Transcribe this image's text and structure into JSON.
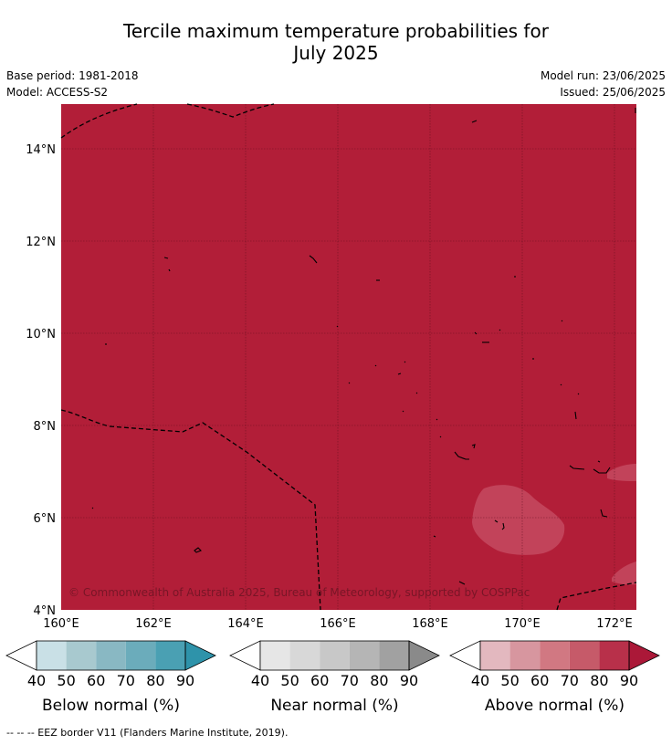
{
  "title_line1": "Tercile maximum temperature probabilities for",
  "title_line2": "July 2025",
  "meta_left": [
    "Base period: 1981-2018",
    "Model: ACCESS-S2"
  ],
  "meta_right": [
    "Model run: 23/06/2025",
    "Issued: 25/06/2025"
  ],
  "map": {
    "lat_ticks": [
      "14°N",
      "12°N",
      "10°N",
      "8°N",
      "6°N",
      "4°N"
    ],
    "lon_ticks": [
      "160°E",
      "162°E",
      "164°E",
      "166°E",
      "168°E",
      "170°E",
      "172°E"
    ],
    "fill_color": "#b21e38",
    "lighter_color": "#c2435a",
    "copyright": "© Commonwealth of Australia 2025, Bureau of Meteorology, supported by COSPPac"
  },
  "colorbars": [
    {
      "title": "Below normal (%)",
      "ticks": [
        "40",
        "50",
        "60",
        "70",
        "80",
        "90"
      ],
      "colors": [
        "#ffffff",
        "#c9e0e6",
        "#a8c9cf",
        "#89b8c3",
        "#6bacbb",
        "#4aa0b3",
        "#2e93aa"
      ]
    },
    {
      "title": "Near normal (%)",
      "ticks": [
        "40",
        "50",
        "60",
        "70",
        "80",
        "90"
      ],
      "colors": [
        "#ffffff",
        "#e6e6e6",
        "#d8d8d8",
        "#c8c8c8",
        "#b5b5b5",
        "#a1a1a1",
        "#8a8a8a"
      ]
    },
    {
      "title": "Above normal (%)",
      "ticks": [
        "40",
        "50",
        "60",
        "70",
        "80",
        "90"
      ],
      "colors": [
        "#ffffff",
        "#e3b8bf",
        "#d7969f",
        "#d17882",
        "#c65a69",
        "#b8304a",
        "#ab1838"
      ]
    }
  ],
  "footer": "-- -- -- EEZ border V11 (Flanders Marine Institute, 2019)."
}
